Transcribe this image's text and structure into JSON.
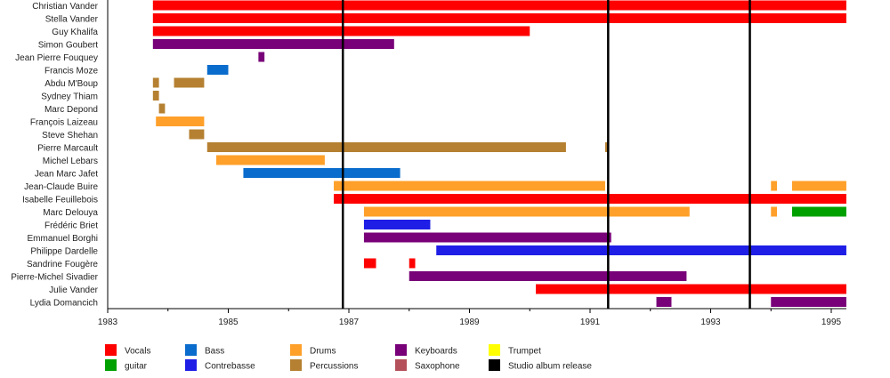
{
  "chart_data": {
    "type": "bar",
    "subtype": "timeline",
    "title": "",
    "xlabel": "",
    "ylabel": "",
    "xlim": [
      1983,
      1995.25
    ],
    "x_ticks_major": [
      1983,
      1985,
      1987,
      1989,
      1991,
      1993,
      1995
    ],
    "x_ticks_minor": [
      1984,
      1986,
      1988,
      1990,
      1992,
      1994
    ],
    "grid": false,
    "legend_position": "bottom",
    "colors": {
      "Vocals": "#ff0000",
      "guitar": "#00a000",
      "Bass": "#0a6ccc",
      "Contrebasse": "#1e1ee6",
      "Drums": "#ffa02a",
      "Percussions": "#b58031",
      "Keyboards": "#780078",
      "Saxophone": "#b4505a",
      "Trumpet": "#ffff00",
      "Studio album release": "#000000"
    },
    "legend": [
      [
        "Vocals",
        "guitar"
      ],
      [
        "Bass",
        "Contrebasse"
      ],
      [
        "Drums",
        "Percussions"
      ],
      [
        "Keyboards",
        "Saxophone"
      ],
      [
        "Trumpet",
        "Studio album release"
      ]
    ],
    "album_releases": [
      1986.9,
      1991.3,
      1993.65
    ],
    "members": [
      {
        "name": "Christian Vander",
        "bars": [
          {
            "role": "Vocals",
            "start": 1983.75,
            "end": 1995.25
          }
        ]
      },
      {
        "name": "Stella Vander",
        "bars": [
          {
            "role": "Vocals",
            "start": 1983.75,
            "end": 1995.25
          }
        ]
      },
      {
        "name": "Guy Khalifa",
        "bars": [
          {
            "role": "Vocals",
            "start": 1983.75,
            "end": 1990.0
          }
        ]
      },
      {
        "name": "Simon Goubert",
        "bars": [
          {
            "role": "Keyboards",
            "start": 1983.75,
            "end": 1987.75
          }
        ]
      },
      {
        "name": "Jean Pierre Fouquey",
        "bars": [
          {
            "role": "Keyboards",
            "start": 1985.5,
            "end": 1985.6
          }
        ]
      },
      {
        "name": "Francis Moze",
        "bars": [
          {
            "role": "Bass",
            "start": 1984.65,
            "end": 1985.0
          }
        ]
      },
      {
        "name": "Abdu M'Boup",
        "bars": [
          {
            "role": "Percussions",
            "start": 1983.75,
            "end": 1983.85
          },
          {
            "role": "Percussions",
            "start": 1984.1,
            "end": 1984.6
          }
        ]
      },
      {
        "name": "Sydney Thiam",
        "bars": [
          {
            "role": "Percussions",
            "start": 1983.75,
            "end": 1983.85
          }
        ]
      },
      {
        "name": "Marc Depond",
        "bars": [
          {
            "role": "Percussions",
            "start": 1983.85,
            "end": 1983.95
          }
        ]
      },
      {
        "name": "François Laizeau",
        "bars": [
          {
            "role": "Drums",
            "start": 1983.8,
            "end": 1984.6
          }
        ]
      },
      {
        "name": "Steve Shehan",
        "bars": [
          {
            "role": "Percussions",
            "start": 1984.35,
            "end": 1984.6
          }
        ]
      },
      {
        "name": "Pierre Marcault",
        "bars": [
          {
            "role": "Percussions",
            "start": 1984.65,
            "end": 1990.6
          },
          {
            "role": "Percussions",
            "start": 1991.25,
            "end": 1991.3
          }
        ]
      },
      {
        "name": "Michel Lebars",
        "bars": [
          {
            "role": "Drums",
            "start": 1984.8,
            "end": 1986.6
          }
        ]
      },
      {
        "name": "Jean Marc Jafet",
        "bars": [
          {
            "role": "Bass",
            "start": 1985.25,
            "end": 1987.85
          }
        ]
      },
      {
        "name": "Jean-Claude Buire",
        "bars": [
          {
            "role": "Drums",
            "start": 1986.75,
            "end": 1991.25
          },
          {
            "role": "Drums",
            "start": 1994.0,
            "end": 1994.1
          },
          {
            "role": "Drums",
            "start": 1994.35,
            "end": 1995.25
          }
        ]
      },
      {
        "name": "Isabelle Feuillebois",
        "bars": [
          {
            "role": "Vocals",
            "start": 1986.75,
            "end": 1995.25
          }
        ]
      },
      {
        "name": "Marc Delouya",
        "bars": [
          {
            "role": "Drums",
            "start": 1987.25,
            "end": 1992.65
          },
          {
            "role": "Drums",
            "start": 1994.0,
            "end": 1994.1
          }
        ]
      },
      {
        "name": "Marc Delouya (guitar)",
        "row": "Marc Delouya",
        "bars": [
          {
            "role": "guitar",
            "start": 1994.35,
            "end": 1995.25
          }
        ]
      },
      {
        "name": "Frédéric Briet",
        "bars": [
          {
            "role": "Contrebasse",
            "start": 1987.25,
            "end": 1988.35
          }
        ]
      },
      {
        "name": "Emmanuel Borghi",
        "bars": [
          {
            "role": "Keyboards",
            "start": 1987.25,
            "end": 1991.35
          }
        ]
      },
      {
        "name": "Philippe Dardelle",
        "bars": [
          {
            "role": "Contrebasse",
            "start": 1988.45,
            "end": 1995.25
          }
        ]
      },
      {
        "name": "Sandrine Fougère",
        "bars": [
          {
            "role": "Vocals",
            "start": 1987.25,
            "end": 1987.45
          },
          {
            "role": "Vocals",
            "start": 1988.0,
            "end": 1988.1
          }
        ]
      },
      {
        "name": "Pierre-Michel Sivadier",
        "bars": [
          {
            "role": "Keyboards",
            "start": 1988.0,
            "end": 1992.6
          }
        ]
      },
      {
        "name": "Julie Vander",
        "bars": [
          {
            "role": "Vocals",
            "start": 1990.1,
            "end": 1995.25
          }
        ]
      },
      {
        "name": "Lydia Domancich",
        "bars": [
          {
            "role": "Keyboards",
            "start": 1992.1,
            "end": 1992.35
          },
          {
            "role": "Keyboards",
            "start": 1994.0,
            "end": 1995.25
          }
        ]
      }
    ]
  }
}
